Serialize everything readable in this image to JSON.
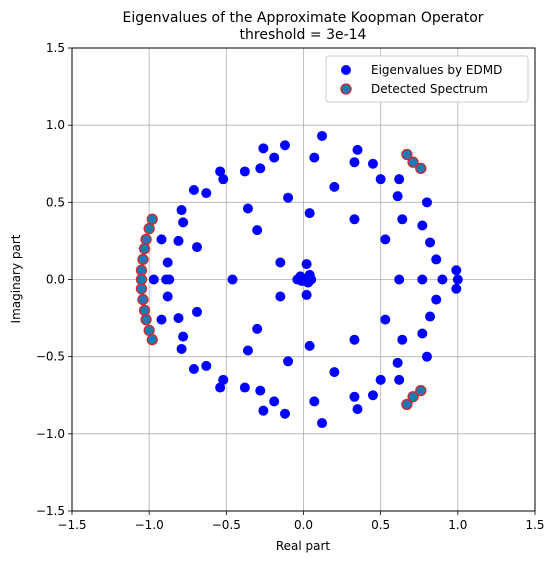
{
  "chart_data": {
    "type": "scatter",
    "title": "Eigenvalues of the Approximate Koopman Operator",
    "subtitle": "threshold = 3e-14",
    "xlabel": "Real part",
    "ylabel": "Imaginary part",
    "xlim": [
      -1.5,
      1.5
    ],
    "ylim": [
      -1.5,
      1.5
    ],
    "xticks": [
      "−1.5",
      "−1.0",
      "−0.5",
      "0.0",
      "0.5",
      "1.0",
      "1.5"
    ],
    "yticks": [
      "−1.5",
      "−1.0",
      "−0.5",
      "0.0",
      "0.5",
      "1.0",
      "1.5"
    ],
    "grid": true,
    "legend_position": "top-right",
    "series": [
      {
        "name": "Eigenvalues by EDMD",
        "color": "#0000ff",
        "points": [
          [
            0.12,
            0.93
          ],
          [
            0.35,
            0.84
          ],
          [
            0.33,
            0.76
          ],
          [
            0.45,
            0.75
          ],
          [
            0.5,
            0.65
          ],
          [
            0.62,
            0.65
          ],
          [
            0.61,
            0.54
          ],
          [
            0.64,
            0.39
          ],
          [
            0.77,
            0.35
          ],
          [
            0.8,
            0.5
          ],
          [
            0.82,
            0.24
          ],
          [
            0.86,
            0.13
          ],
          [
            0.99,
            0.06
          ],
          [
            0.77,
            0.0
          ],
          [
            0.9,
            0.0
          ],
          [
            1.0,
            0.0
          ],
          [
            0.62,
            0.0
          ],
          [
            0.99,
            -0.06
          ],
          [
            0.86,
            -0.13
          ],
          [
            0.82,
            -0.24
          ],
          [
            0.77,
            -0.35
          ],
          [
            0.8,
            -0.5
          ],
          [
            0.64,
            -0.39
          ],
          [
            0.61,
            -0.54
          ],
          [
            0.62,
            -0.65
          ],
          [
            0.5,
            -0.65
          ],
          [
            0.45,
            -0.75
          ],
          [
            0.33,
            -0.76
          ],
          [
            0.35,
            -0.84
          ],
          [
            0.12,
            -0.93
          ],
          [
            0.07,
            0.79
          ],
          [
            0.2,
            0.6
          ],
          [
            0.04,
            0.43
          ],
          [
            0.33,
            0.39
          ],
          [
            0.53,
            0.26
          ],
          [
            0.07,
            -0.79
          ],
          [
            0.2,
            -0.6
          ],
          [
            0.04,
            -0.43
          ],
          [
            0.33,
            -0.39
          ],
          [
            0.53,
            -0.26
          ],
          [
            -0.12,
            0.87
          ],
          [
            -0.26,
            0.85
          ],
          [
            -0.19,
            0.79
          ],
          [
            -0.28,
            0.72
          ],
          [
            -0.38,
            0.7
          ],
          [
            -0.54,
            0.7
          ],
          [
            -0.52,
            0.65
          ],
          [
            -0.71,
            0.58
          ],
          [
            -0.63,
            0.56
          ],
          [
            -0.79,
            0.45
          ],
          [
            -0.78,
            0.37
          ],
          [
            -0.69,
            0.21
          ],
          [
            -0.81,
            0.25
          ],
          [
            -0.88,
            0.11
          ],
          [
            -0.92,
            0.26
          ],
          [
            -0.89,
            0.0
          ],
          [
            -0.87,
            0.0
          ],
          [
            -0.97,
            0.0
          ],
          [
            -0.46,
            0.0
          ],
          [
            -0.36,
            0.46
          ],
          [
            -0.3,
            0.32
          ],
          [
            -0.1,
            0.53
          ],
          [
            -0.15,
            0.11
          ],
          [
            -0.15,
            -0.11
          ],
          [
            -0.12,
            -0.87
          ],
          [
            -0.26,
            -0.85
          ],
          [
            -0.19,
            -0.79
          ],
          [
            -0.28,
            -0.72
          ],
          [
            -0.38,
            -0.7
          ],
          [
            -0.54,
            -0.7
          ],
          [
            -0.52,
            -0.65
          ],
          [
            -0.71,
            -0.58
          ],
          [
            -0.63,
            -0.56
          ],
          [
            -0.79,
            -0.45
          ],
          [
            -0.78,
            -0.37
          ],
          [
            -0.69,
            -0.21
          ],
          [
            -0.81,
            -0.25
          ],
          [
            -0.88,
            -0.11
          ],
          [
            -0.92,
            -0.26
          ],
          [
            -0.36,
            -0.46
          ],
          [
            -0.3,
            -0.32
          ],
          [
            -0.1,
            -0.53
          ],
          [
            0.02,
            0.1
          ],
          [
            0.04,
            0.03
          ],
          [
            0.05,
            0.0
          ],
          [
            0.03,
            -0.02
          ],
          [
            0.02,
            -0.1
          ],
          [
            -0.02,
            0.02
          ],
          [
            -0.04,
            0.0
          ],
          [
            -0.01,
            -0.01
          ],
          [
            0.0,
            0.0
          ]
        ]
      },
      {
        "name": "Detected Spectrum",
        "color": "#1f77b4",
        "edgecolor": "#d62728",
        "points": [
          [
            0.67,
            0.81
          ],
          [
            0.71,
            0.76
          ],
          [
            0.76,
            0.72
          ],
          [
            0.67,
            -0.81
          ],
          [
            0.71,
            -0.76
          ],
          [
            0.76,
            -0.72
          ],
          [
            -0.98,
            0.39
          ],
          [
            -1.0,
            0.33
          ],
          [
            -1.02,
            0.26
          ],
          [
            -1.03,
            0.2
          ],
          [
            -1.04,
            0.13
          ],
          [
            -1.05,
            0.06
          ],
          [
            -1.05,
            0.0
          ],
          [
            -1.05,
            -0.06
          ],
          [
            -1.04,
            -0.13
          ],
          [
            -1.03,
            -0.2
          ],
          [
            -1.02,
            -0.26
          ],
          [
            -1.0,
            -0.33
          ],
          [
            -0.98,
            -0.39
          ]
        ]
      }
    ]
  }
}
